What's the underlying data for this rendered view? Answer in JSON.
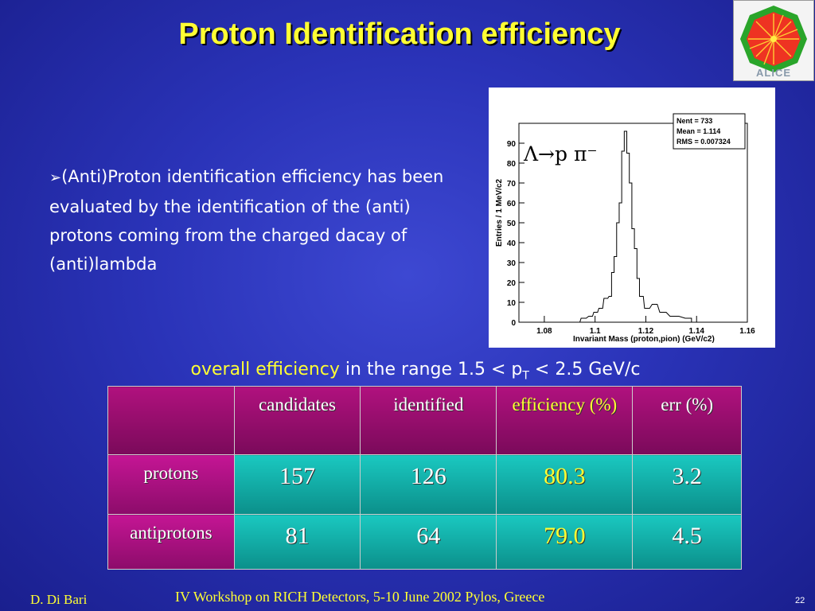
{
  "title": "Proton Identification efficiency",
  "logo": {
    "text": "ALICE",
    "icon": "alice-logo-icon",
    "colors": [
      "#22aa22",
      "#ee3322",
      "#ff9900"
    ]
  },
  "bullet": {
    "marker": "➢",
    "text": "(Anti)Proton identification efficiency has been evaluated by the identification of the (anti) protons coming from the charged dacay of (anti)lambda"
  },
  "plot": {
    "stats": {
      "nent_label": "Nent = 733",
      "mean_label": "Mean  =  1.114",
      "rms_label": "RMS   = 0.007324"
    },
    "decay_label": "Λ→p π⁻",
    "ylabel": "Entries / 1 MeV/c2",
    "xlabel": "Invariant Mass (proton,pion) (GeV/c2)"
  },
  "chart_data": {
    "type": "line",
    "xlim": [
      1.07,
      1.16
    ],
    "ylim": [
      0,
      100
    ],
    "xticks": [
      "1.08",
      "1.1",
      "1.12",
      "1.14",
      "1.16"
    ],
    "yticks": [
      "0",
      "10",
      "20",
      "30",
      "40",
      "50",
      "60",
      "70",
      "80",
      "90"
    ],
    "bins": [
      {
        "x": 1.095,
        "y": 2
      },
      {
        "x": 1.098,
        "y": 3
      },
      {
        "x": 1.1,
        "y": 5
      },
      {
        "x": 1.102,
        "y": 7
      },
      {
        "x": 1.104,
        "y": 12
      },
      {
        "x": 1.106,
        "y": 13
      },
      {
        "x": 1.107,
        "y": 25
      },
      {
        "x": 1.108,
        "y": 33
      },
      {
        "x": 1.109,
        "y": 50
      },
      {
        "x": 1.11,
        "y": 60
      },
      {
        "x": 1.111,
        "y": 86
      },
      {
        "x": 1.112,
        "y": 96
      },
      {
        "x": 1.113,
        "y": 85
      },
      {
        "x": 1.114,
        "y": 70
      },
      {
        "x": 1.115,
        "y": 47
      },
      {
        "x": 1.116,
        "y": 37
      },
      {
        "x": 1.117,
        "y": 22
      },
      {
        "x": 1.118,
        "y": 13
      },
      {
        "x": 1.12,
        "y": 7
      },
      {
        "x": 1.123,
        "y": 9
      },
      {
        "x": 1.126,
        "y": 5
      },
      {
        "x": 1.13,
        "y": 3
      },
      {
        "x": 1.136,
        "y": 2
      }
    ]
  },
  "eff": {
    "highlight": "overall efficiency",
    "rest_pre": " in the range 1.5 < p",
    "sub": "T",
    "rest_post": " < 2.5 GeV/c"
  },
  "table": {
    "headers": [
      "candidates",
      "identified",
      "efficiency (%)",
      "err (%)"
    ],
    "rows": [
      {
        "label": "protons",
        "candidates": "157",
        "identified": "126",
        "efficiency": "80.3",
        "err": "3.2"
      },
      {
        "label": "antiprotons",
        "candidates": "81",
        "identified": "64",
        "efficiency": "79.0",
        "err": "4.5"
      }
    ]
  },
  "footer": {
    "author": "D. Di Bari",
    "event": "IV Workshop on RICH Detectors, 5-10 June 2002 Pylos, Greece",
    "page": "22"
  }
}
